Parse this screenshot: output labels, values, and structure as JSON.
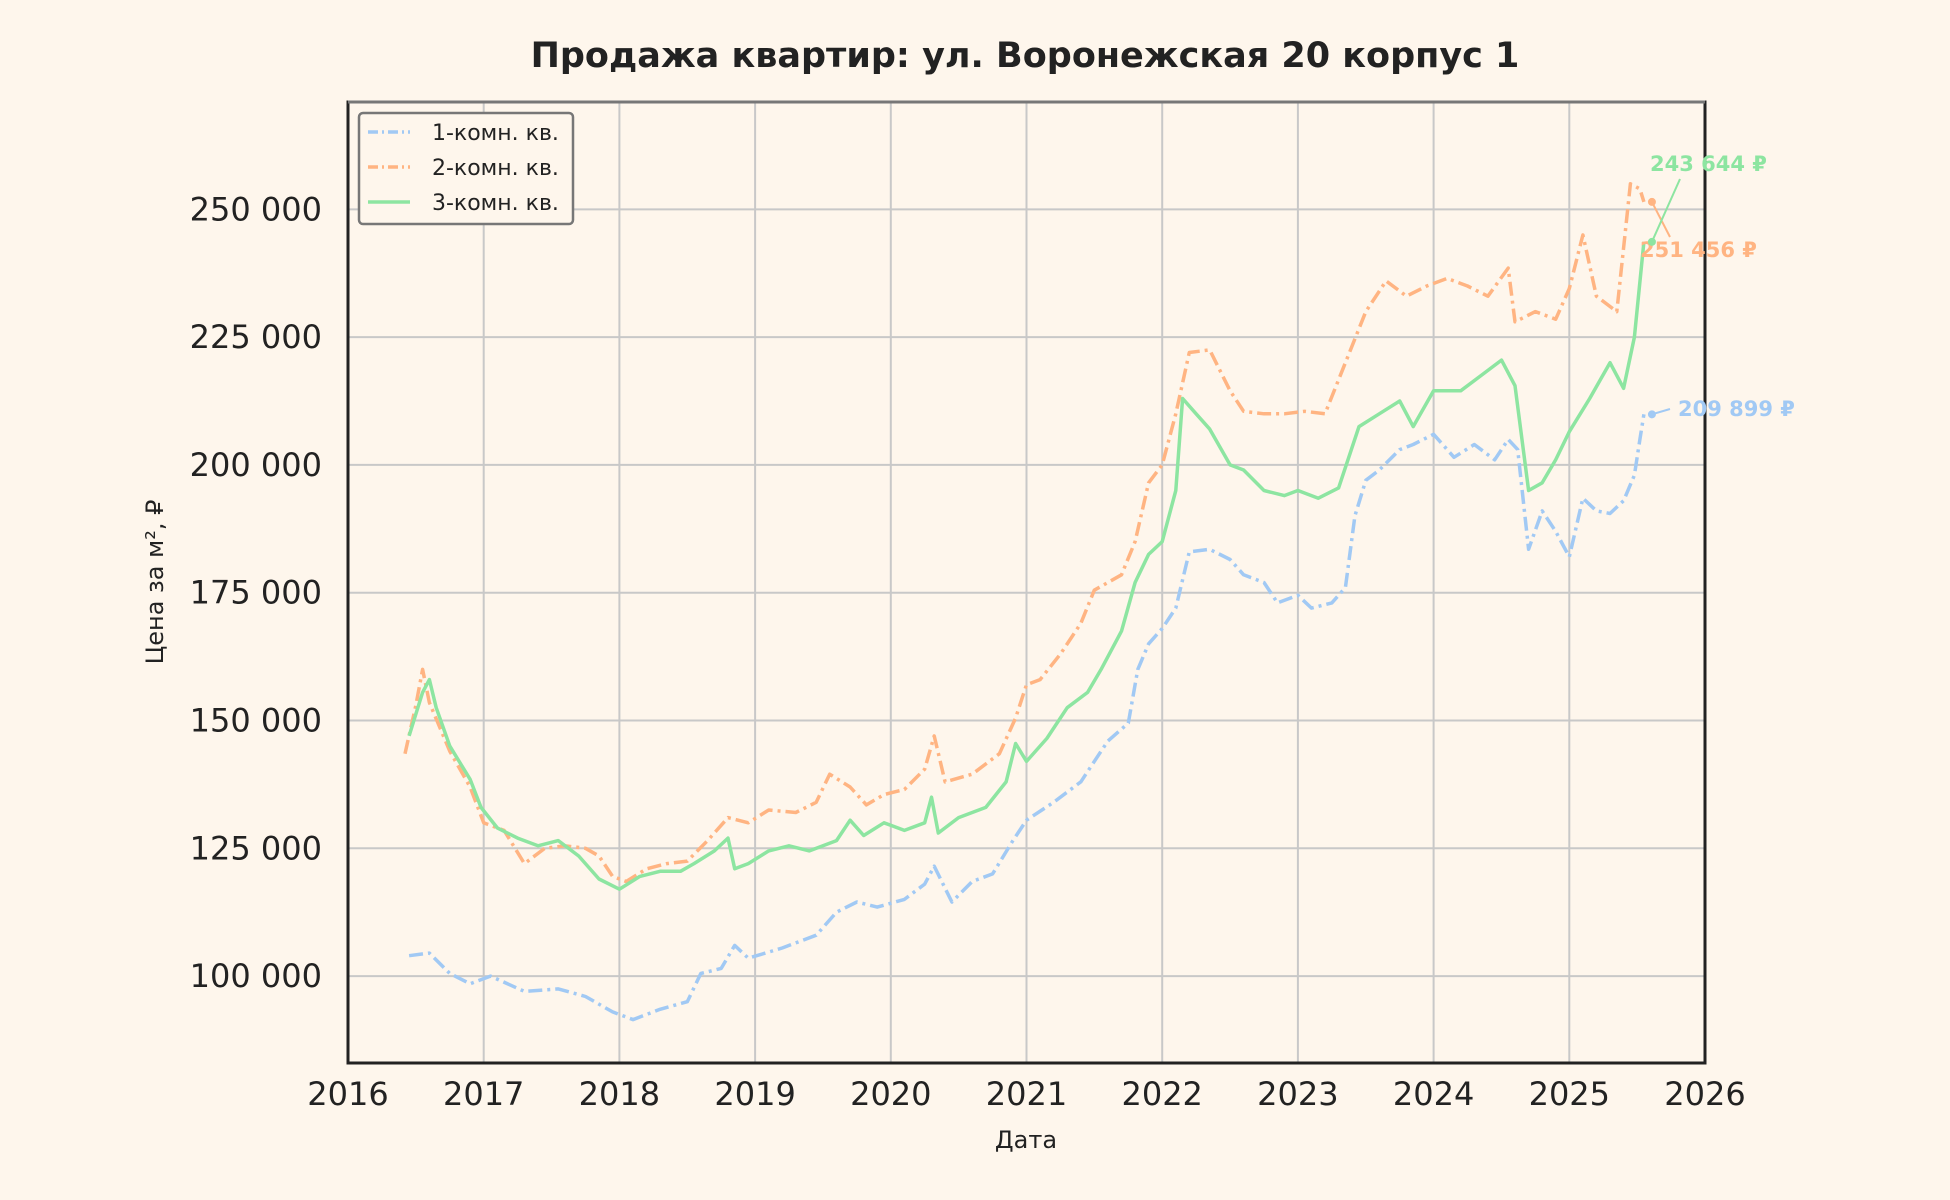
{
  "chart_data": {
    "type": "line",
    "title": "Продажа квартир: ул. Воронежская 20 корпус 1",
    "xlabel": "Дата",
    "ylabel": "Цена за м², ₽",
    "xlim": [
      2016,
      2026
    ],
    "ylim": [
      83000,
      271000
    ],
    "x_ticks": [
      "2016",
      "2017",
      "2018",
      "2019",
      "2020",
      "2021",
      "2022",
      "2023",
      "2024",
      "2025",
      "2026"
    ],
    "y_ticks": [
      {
        "value": 100000,
        "label": "100 000"
      },
      {
        "value": 125000,
        "label": "125 000"
      },
      {
        "value": 150000,
        "label": "150 000"
      },
      {
        "value": 175000,
        "label": "175 000"
      },
      {
        "value": 200000,
        "label": "200 000"
      },
      {
        "value": 225000,
        "label": "225 000"
      },
      {
        "value": 250000,
        "label": "250 000"
      }
    ],
    "grid": true,
    "legend_position": "top-left",
    "series": [
      {
        "name": "1-комн. кв.",
        "color": "#a1c9f4",
        "style": "dashdot",
        "end_label": "209 899 ₽",
        "points": [
          [
            2016.45,
            104000
          ],
          [
            2016.6,
            104500
          ],
          [
            2016.75,
            100500
          ],
          [
            2016.9,
            98500
          ],
          [
            2017.05,
            100000
          ],
          [
            2017.3,
            97000
          ],
          [
            2017.55,
            97500
          ],
          [
            2017.75,
            96000
          ],
          [
            2017.95,
            93000
          ],
          [
            2018.1,
            91500
          ],
          [
            2018.3,
            93500
          ],
          [
            2018.5,
            95000
          ],
          [
            2018.6,
            100500
          ],
          [
            2018.75,
            101500
          ],
          [
            2018.85,
            106000
          ],
          [
            2018.95,
            103500
          ],
          [
            2019.2,
            105500
          ],
          [
            2019.45,
            108000
          ],
          [
            2019.6,
            112500
          ],
          [
            2019.75,
            114500
          ],
          [
            2019.9,
            113500
          ],
          [
            2020.1,
            115000
          ],
          [
            2020.25,
            118000
          ],
          [
            2020.32,
            121500
          ],
          [
            2020.45,
            114500
          ],
          [
            2020.6,
            118500
          ],
          [
            2020.75,
            120000
          ],
          [
            2020.9,
            126500
          ],
          [
            2021.0,
            130500
          ],
          [
            2021.2,
            134000
          ],
          [
            2021.4,
            138000
          ],
          [
            2021.5,
            142000
          ],
          [
            2021.6,
            146000
          ],
          [
            2021.75,
            149500
          ],
          [
            2021.82,
            160000
          ],
          [
            2021.9,
            165000
          ],
          [
            2022.0,
            168000
          ],
          [
            2022.1,
            172000
          ],
          [
            2022.2,
            183000
          ],
          [
            2022.35,
            183500
          ],
          [
            2022.5,
            181500
          ],
          [
            2022.6,
            178500
          ],
          [
            2022.75,
            177000
          ],
          [
            2022.85,
            173000
          ],
          [
            2023.0,
            174500
          ],
          [
            2023.1,
            172000
          ],
          [
            2023.25,
            173000
          ],
          [
            2023.35,
            176000
          ],
          [
            2023.42,
            190000
          ],
          [
            2023.5,
            197000
          ],
          [
            2023.6,
            199000
          ],
          [
            2023.75,
            203000
          ],
          [
            2023.85,
            204000
          ],
          [
            2024.0,
            206000
          ],
          [
            2024.15,
            201500
          ],
          [
            2024.3,
            204000
          ],
          [
            2024.45,
            201000
          ],
          [
            2024.55,
            205000
          ],
          [
            2024.62,
            203000
          ],
          [
            2024.7,
            183500
          ],
          [
            2024.8,
            191000
          ],
          [
            2024.9,
            187000
          ],
          [
            2025.0,
            182000
          ],
          [
            2025.1,
            193500
          ],
          [
            2025.2,
            191000
          ],
          [
            2025.3,
            190500
          ],
          [
            2025.4,
            193000
          ],
          [
            2025.48,
            198000
          ],
          [
            2025.52,
            205000
          ],
          [
            2025.55,
            209899
          ]
        ]
      },
      {
        "name": "2-комн. кв.",
        "color": "#ffb482",
        "style": "dashdot",
        "end_label": "251 456 ₽",
        "points": [
          [
            2016.42,
            143500
          ],
          [
            2016.5,
            153000
          ],
          [
            2016.55,
            160000
          ],
          [
            2016.6,
            153500
          ],
          [
            2016.75,
            144000
          ],
          [
            2016.9,
            137000
          ],
          [
            2017.0,
            130000
          ],
          [
            2017.15,
            128500
          ],
          [
            2017.3,
            122000
          ],
          [
            2017.45,
            125000
          ],
          [
            2017.6,
            125500
          ],
          [
            2017.75,
            125000
          ],
          [
            2017.85,
            123500
          ],
          [
            2017.95,
            119500
          ],
          [
            2018.05,
            118500
          ],
          [
            2018.2,
            121000
          ],
          [
            2018.35,
            122000
          ],
          [
            2018.5,
            122500
          ],
          [
            2018.65,
            126500
          ],
          [
            2018.8,
            131000
          ],
          [
            2018.95,
            130000
          ],
          [
            2019.1,
            132500
          ],
          [
            2019.3,
            132000
          ],
          [
            2019.45,
            134000
          ],
          [
            2019.55,
            139500
          ],
          [
            2019.7,
            137000
          ],
          [
            2019.82,
            133500
          ],
          [
            2019.95,
            135500
          ],
          [
            2020.1,
            136500
          ],
          [
            2020.25,
            140500
          ],
          [
            2020.32,
            147000
          ],
          [
            2020.4,
            138000
          ],
          [
            2020.6,
            139500
          ],
          [
            2020.8,
            143500
          ],
          [
            2020.92,
            150500
          ],
          [
            2021.0,
            157000
          ],
          [
            2021.1,
            158000
          ],
          [
            2021.25,
            163000
          ],
          [
            2021.4,
            169000
          ],
          [
            2021.5,
            175500
          ],
          [
            2021.7,
            178500
          ],
          [
            2021.8,
            185000
          ],
          [
            2021.9,
            196500
          ],
          [
            2022.0,
            200000
          ],
          [
            2022.1,
            210000
          ],
          [
            2022.2,
            222000
          ],
          [
            2022.35,
            222500
          ],
          [
            2022.5,
            214500
          ],
          [
            2022.6,
            210500
          ],
          [
            2022.75,
            210000
          ],
          [
            2022.9,
            210000
          ],
          [
            2023.05,
            210500
          ],
          [
            2023.2,
            210000
          ],
          [
            2023.35,
            220000
          ],
          [
            2023.5,
            230000
          ],
          [
            2023.65,
            236000
          ],
          [
            2023.8,
            233000
          ],
          [
            2023.95,
            235000
          ],
          [
            2024.1,
            236500
          ],
          [
            2024.25,
            235000
          ],
          [
            2024.4,
            233000
          ],
          [
            2024.55,
            238500
          ],
          [
            2024.6,
            228000
          ],
          [
            2024.75,
            230000
          ],
          [
            2024.9,
            228500
          ],
          [
            2025.0,
            234500
          ],
          [
            2025.1,
            245000
          ],
          [
            2025.2,
            233000
          ],
          [
            2025.35,
            230000
          ],
          [
            2025.45,
            255000
          ],
          [
            2025.52,
            254000
          ],
          [
            2025.55,
            251456
          ]
        ]
      },
      {
        "name": "3-комн. кв.",
        "color": "#8de5a1",
        "style": "solid",
        "end_label": "243 644 ₽",
        "points": [
          [
            2016.45,
            147000
          ],
          [
            2016.55,
            155500
          ],
          [
            2016.6,
            158000
          ],
          [
            2016.65,
            152500
          ],
          [
            2016.75,
            145000
          ],
          [
            2016.9,
            138500
          ],
          [
            2016.98,
            133000
          ],
          [
            2017.1,
            129000
          ],
          [
            2017.25,
            127000
          ],
          [
            2017.4,
            125500
          ],
          [
            2017.55,
            126500
          ],
          [
            2017.7,
            123500
          ],
          [
            2017.85,
            119000
          ],
          [
            2018.0,
            117000
          ],
          [
            2018.15,
            119500
          ],
          [
            2018.3,
            120500
          ],
          [
            2018.45,
            120500
          ],
          [
            2018.55,
            122000
          ],
          [
            2018.7,
            124500
          ],
          [
            2018.8,
            127000
          ],
          [
            2018.85,
            121000
          ],
          [
            2018.95,
            122000
          ],
          [
            2019.1,
            124500
          ],
          [
            2019.25,
            125500
          ],
          [
            2019.4,
            124500
          ],
          [
            2019.6,
            126500
          ],
          [
            2019.7,
            130500
          ],
          [
            2019.8,
            127500
          ],
          [
            2019.95,
            130000
          ],
          [
            2020.1,
            128500
          ],
          [
            2020.25,
            130000
          ],
          [
            2020.3,
            135000
          ],
          [
            2020.35,
            128000
          ],
          [
            2020.5,
            131000
          ],
          [
            2020.7,
            133000
          ],
          [
            2020.85,
            138000
          ],
          [
            2020.92,
            145500
          ],
          [
            2021.0,
            142000
          ],
          [
            2021.15,
            146500
          ],
          [
            2021.3,
            152500
          ],
          [
            2021.45,
            155500
          ],
          [
            2021.55,
            160000
          ],
          [
            2021.7,
            167500
          ],
          [
            2021.8,
            177000
          ],
          [
            2021.9,
            182500
          ],
          [
            2022.0,
            185000
          ],
          [
            2022.1,
            195000
          ],
          [
            2022.15,
            213000
          ],
          [
            2022.25,
            210000
          ],
          [
            2022.35,
            207000
          ],
          [
            2022.5,
            200000
          ],
          [
            2022.6,
            199000
          ],
          [
            2022.75,
            195000
          ],
          [
            2022.9,
            194000
          ],
          [
            2023.0,
            195000
          ],
          [
            2023.15,
            193500
          ],
          [
            2023.3,
            195500
          ],
          [
            2023.45,
            207500
          ],
          [
            2023.6,
            210000
          ],
          [
            2023.75,
            212500
          ],
          [
            2023.85,
            207500
          ],
          [
            2024.0,
            214500
          ],
          [
            2024.2,
            214500
          ],
          [
            2024.35,
            217500
          ],
          [
            2024.5,
            220500
          ],
          [
            2024.6,
            215500
          ],
          [
            2024.7,
            195000
          ],
          [
            2024.8,
            196500
          ],
          [
            2024.9,
            201000
          ],
          [
            2025.0,
            206500
          ],
          [
            2025.15,
            213000
          ],
          [
            2025.3,
            220000
          ],
          [
            2025.4,
            215000
          ],
          [
            2025.48,
            225000
          ],
          [
            2025.55,
            243644
          ]
        ]
      }
    ]
  }
}
